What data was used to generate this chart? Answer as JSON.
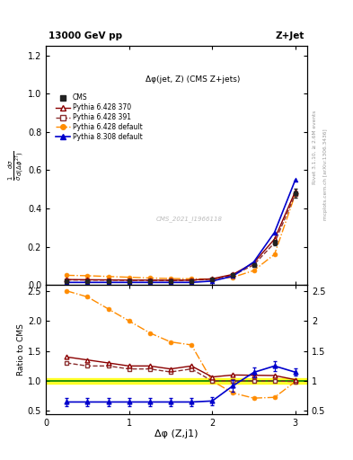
{
  "title_top": "13000 GeV pp",
  "title_right": "Z+Jet",
  "annotation": "Δφ(jet, Z) (CMS Z+jets)",
  "watermark": "CMS_2021_I1966118",
  "xlabel": "Δφ (Z,j1)",
  "ylabel_main": "$\\frac{1}{\\bar{\\sigma}}\\frac{d\\sigma}{d(\\Delta\\phi^{2T})}$",
  "ylabel_ratio": "Ratio to CMS",
  "right_label_top": "Rivet 3.1.10, ≥ 2.6M events",
  "right_label_bot": "mcplots.cern.ch [arXiv:1306.3436]",
  "cms_x": [
    0.25,
    0.5,
    0.75,
    1.0,
    1.25,
    1.5,
    1.75,
    2.0,
    2.25,
    2.5,
    2.75,
    3.0
  ],
  "cms_y": [
    0.02,
    0.02,
    0.02,
    0.02,
    0.02,
    0.02,
    0.02,
    0.03,
    0.05,
    0.105,
    0.22,
    0.48
  ],
  "cms_yerr": [
    0.002,
    0.002,
    0.002,
    0.002,
    0.002,
    0.002,
    0.002,
    0.003,
    0.005,
    0.008,
    0.015,
    0.025
  ],
  "py6_370_x": [
    0.25,
    0.5,
    0.75,
    1.0,
    1.25,
    1.5,
    1.75,
    2.0,
    2.25,
    2.5,
    2.75,
    3.0
  ],
  "py6_370_y": [
    0.028,
    0.027,
    0.026,
    0.025,
    0.025,
    0.024,
    0.025,
    0.032,
    0.055,
    0.115,
    0.24,
    0.49
  ],
  "py6_391_x": [
    0.25,
    0.5,
    0.75,
    1.0,
    1.25,
    1.5,
    1.75,
    2.0,
    2.25,
    2.5,
    2.75,
    3.0
  ],
  "py6_391_y": [
    0.026,
    0.025,
    0.025,
    0.024,
    0.024,
    0.023,
    0.024,
    0.03,
    0.05,
    0.105,
    0.22,
    0.475
  ],
  "py6_def_x": [
    0.25,
    0.5,
    0.75,
    1.0,
    1.25,
    1.5,
    1.75,
    2.0,
    2.25,
    2.5,
    2.75,
    3.0
  ],
  "py6_def_y": [
    0.05,
    0.048,
    0.044,
    0.04,
    0.036,
    0.033,
    0.032,
    0.03,
    0.04,
    0.075,
    0.16,
    0.475
  ],
  "py8_def_x": [
    0.25,
    0.5,
    0.75,
    1.0,
    1.25,
    1.5,
    1.75,
    2.0,
    2.25,
    2.5,
    2.75,
    3.0
  ],
  "py8_def_y": [
    0.013,
    0.013,
    0.013,
    0.013,
    0.013,
    0.013,
    0.013,
    0.02,
    0.046,
    0.12,
    0.275,
    0.55
  ],
  "colors": {
    "cms": "#222222",
    "py6_370": "#8b0000",
    "py6_391": "#8b3030",
    "py6_def": "#ff8c00",
    "py8_def": "#0000cc"
  },
  "ylim_main": [
    0.0,
    1.25
  ],
  "ylim_ratio": [
    0.45,
    2.6
  ],
  "xlim": [
    0.0,
    3.14159
  ],
  "xticks": [
    0,
    1,
    2,
    3
  ],
  "yticks_main": [
    0.0,
    0.2,
    0.4,
    0.6,
    0.8,
    1.0,
    1.2
  ],
  "yticks_ratio": [
    0.5,
    1.0,
    1.5,
    2.0,
    2.5
  ]
}
